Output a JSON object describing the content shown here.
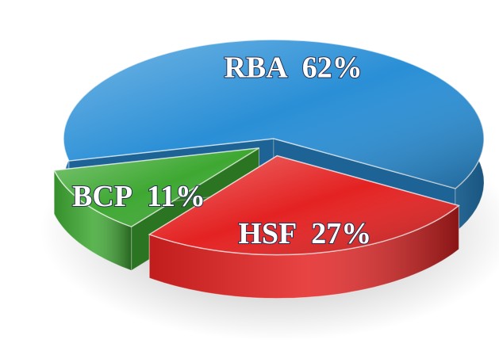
{
  "chart_data": {
    "type": "pie",
    "categories": [
      "RBA",
      "HSF",
      "BCP"
    ],
    "values": [
      62,
      27,
      11
    ],
    "value_labels": [
      "62%",
      "27%",
      "11%"
    ],
    "colors": [
      "#2a8fd6",
      "#e42222",
      "#3ea832"
    ]
  }
}
